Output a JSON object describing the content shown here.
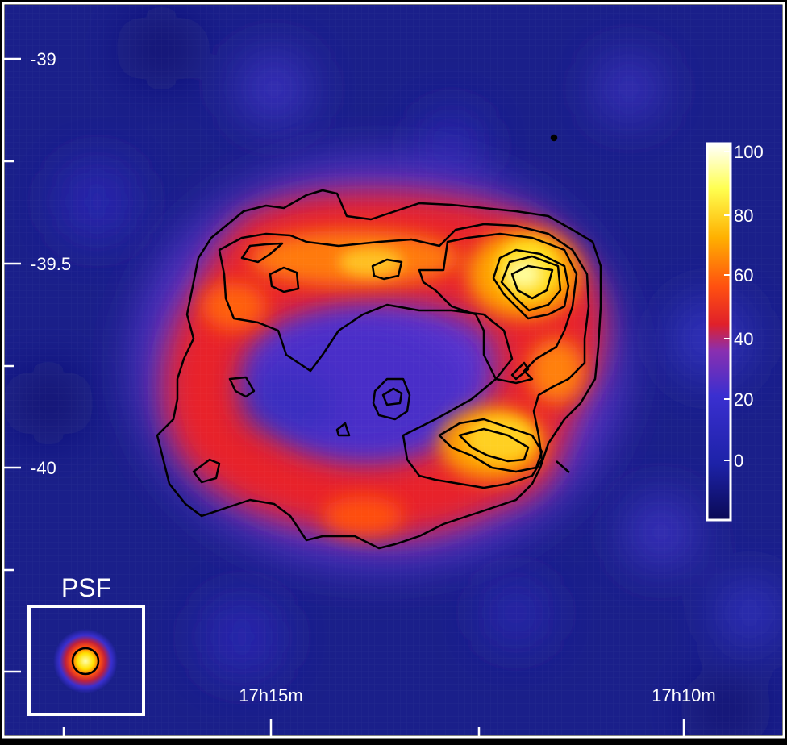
{
  "axes": {
    "dec_ticks": [
      "-39",
      "-39.5",
      "-40"
    ],
    "ra_ticks": [
      "17h15m",
      "17h10m"
    ]
  },
  "colorbar": {
    "tick_labels": [
      "100",
      "80",
      "60",
      "40",
      "20",
      "0"
    ],
    "colormap": [
      "#0a0a55",
      "#1d22a8",
      "#3a2fd0",
      "#7a2fc0",
      "#e0202a",
      "#ff5a10",
      "#ffb400",
      "#ffff60",
      "#ffffff"
    ]
  },
  "psf_inset": {
    "label": "PSF"
  },
  "colors": {
    "background": "#1a1f8a",
    "frame": "#ffffff",
    "contour": "#000000"
  }
}
